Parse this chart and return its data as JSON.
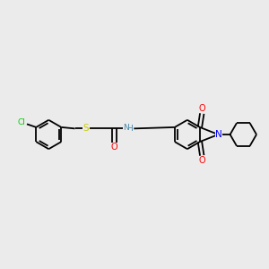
{
  "bg_color": "#ebebeb",
  "bond_color": "#000000",
  "cl_color": "#00cc00",
  "s_color": "#cccc00",
  "o_color": "#ff0000",
  "n_color": "#0000ff",
  "nh_color": "#4488aa",
  "line_width": 1.3,
  "fig_width": 3.0,
  "fig_height": 3.0,
  "dpi": 100,
  "xlim": [
    0,
    10
  ],
  "ylim": [
    1,
    9
  ]
}
